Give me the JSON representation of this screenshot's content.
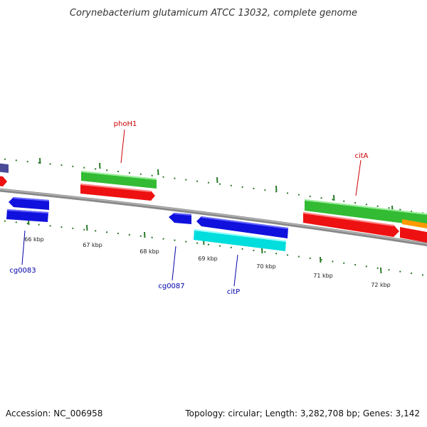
{
  "title": "Corynebacterium glutamicum ATCC 13032, complete genome",
  "footer": {
    "accession": "Accession: NC_006958",
    "info": "Topology: circular; Length: 3,282,708 bp; Genes: 3,142"
  },
  "ticks": [
    {
      "label": "66 kbp"
    },
    {
      "label": "67 kbp"
    },
    {
      "label": "68 kbp"
    },
    {
      "label": "69 kbp"
    },
    {
      "label": "70 kbp"
    },
    {
      "label": "71 kbp"
    },
    {
      "label": "72 kbp"
    }
  ],
  "labels": [
    {
      "text": "phoH1",
      "color": "#cc0000"
    },
    {
      "text": "citA",
      "color": "#cc0000"
    },
    {
      "text": "cg0083",
      "color": "#0000aa"
    },
    {
      "text": "cg0087",
      "color": "#0000aa"
    },
    {
      "text": "citP",
      "color": "#0000aa"
    }
  ],
  "colors": {
    "forward_cds": "#ee1111",
    "reverse_cds": "#1111dd",
    "forward_gene": "#33bb33",
    "reverse_gene": "#00dddd",
    "other_feature": "#ff9900",
    "backbone": "#888888",
    "tick": "#2a7a2a"
  }
}
